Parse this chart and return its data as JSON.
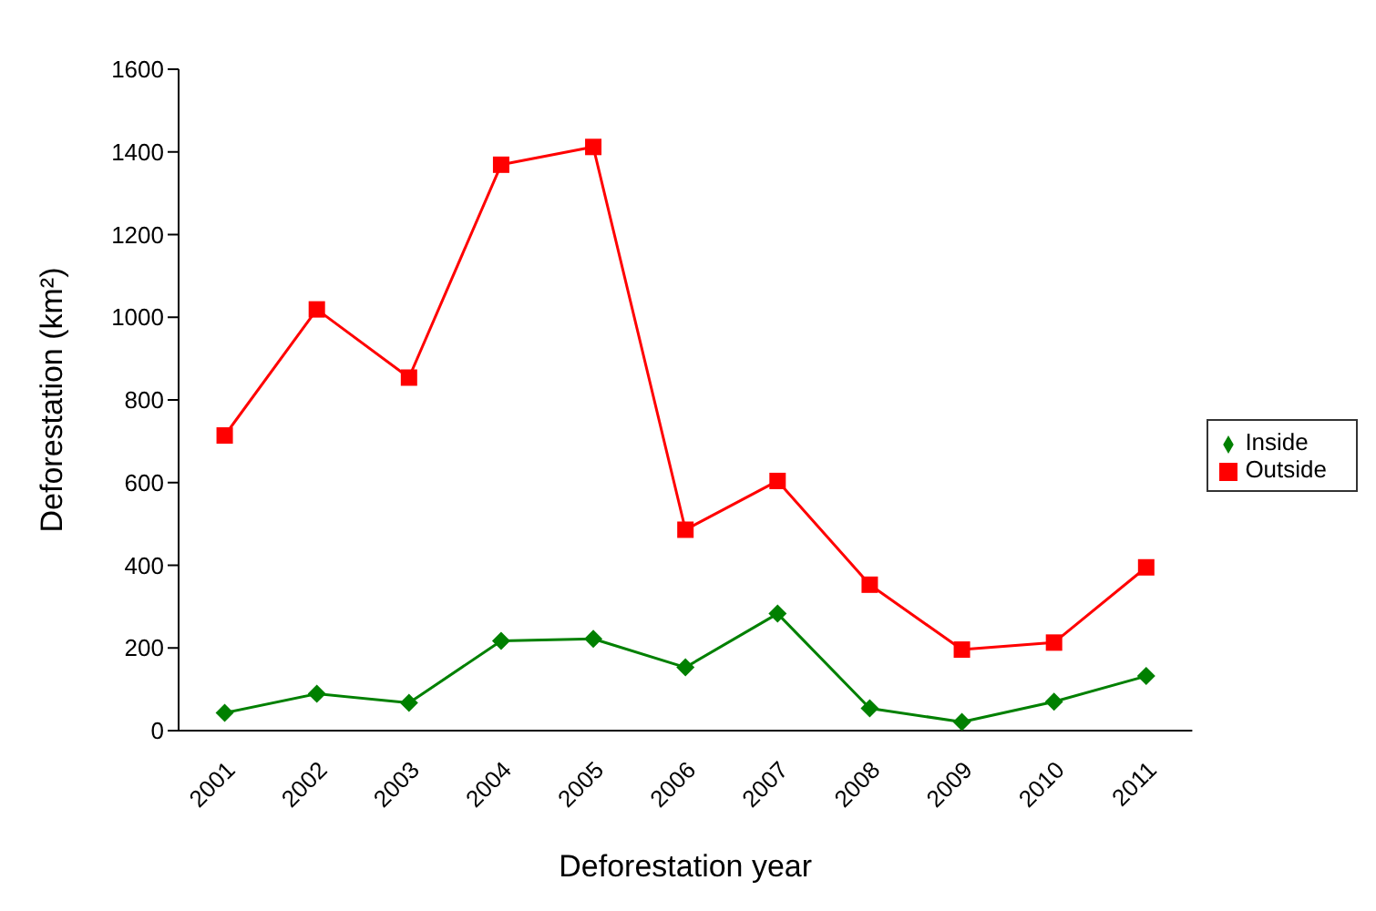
{
  "chart_data": {
    "type": "line",
    "xlabel": "Deforestation year",
    "ylabel": "Deforestation (km²)",
    "categories": [
      "2001",
      "2002",
      "2003",
      "2004",
      "2005",
      "2006",
      "2007",
      "2008",
      "2009",
      "2010",
      "2011"
    ],
    "series": [
      {
        "name": "Inside",
        "color": "#008000",
        "marker": "diamond",
        "values": [
          43,
          89,
          67,
          217,
          222,
          153,
          283,
          54,
          21,
          70,
          132
        ]
      },
      {
        "name": "Outside",
        "color": "#ff0000",
        "marker": "square",
        "values": [
          714,
          1019,
          854,
          1369,
          1412,
          486,
          604,
          353,
          196,
          213,
          395
        ]
      }
    ],
    "ylim": [
      0,
      1600
    ],
    "yticks": [
      0,
      200,
      400,
      600,
      800,
      1000,
      1200,
      1400,
      1600
    ],
    "legend": "right"
  }
}
